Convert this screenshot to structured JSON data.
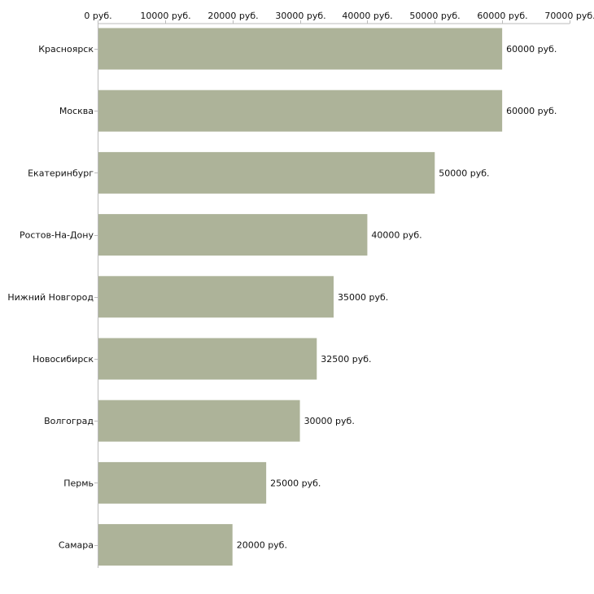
{
  "chart_data": {
    "type": "bar",
    "orientation": "horizontal",
    "title": "",
    "xlabel": "",
    "ylabel": "",
    "xlim": [
      0,
      70000
    ],
    "ticks": [
      0,
      10000,
      20000,
      30000,
      40000,
      50000,
      60000,
      70000
    ],
    "tick_labels": [
      "0 руб.",
      "10000 руб.",
      "20000 руб.",
      "30000 руб.",
      "40000 руб.",
      "50000 руб.",
      "60000 руб.",
      "70000 руб."
    ],
    "categories": [
      "Красноярск",
      "Москва",
      "Екатеринбург",
      "Ростов-На-Дону",
      "Нижний Новгород",
      "Новосибирск",
      "Волгоград",
      "Пермь",
      "Самара"
    ],
    "values": [
      60000,
      60000,
      50000,
      40000,
      35000,
      32500,
      30000,
      25000,
      20000
    ],
    "value_labels": [
      "60000 руб.",
      "60000 руб.",
      "50000 руб.",
      "40000 руб.",
      "35000 руб.",
      "32500 руб.",
      "30000 руб.",
      "25000 руб.",
      "20000 руб."
    ],
    "bar_color": "#adb399",
    "axis_color": "#bbbbbb",
    "text_color": "#111111",
    "legend": "none",
    "grid": false
  }
}
